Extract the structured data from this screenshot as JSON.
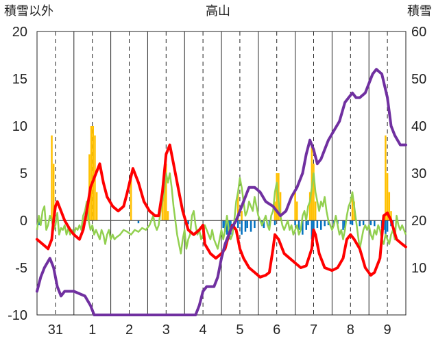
{
  "chart_data": {
    "type": "line",
    "title": "高山",
    "ylabel_left": "積雪以外",
    "ylabel_right": "積雪",
    "y_left": {
      "min": -10,
      "max": 20,
      "ticks": [
        "20",
        "15",
        "10",
        "5",
        "0",
        "-5",
        "-10"
      ]
    },
    "y_right": {
      "min": 0,
      "max": 60,
      "ticks": [
        "60",
        "50",
        "40",
        "30",
        "20",
        "10"
      ]
    },
    "x_range": [
      0,
      10
    ],
    "x_ticks": [
      {
        "label": "31",
        "pos": 0.5
      },
      {
        "label": "1",
        "pos": 1.5
      },
      {
        "label": "2",
        "pos": 2.5
      },
      {
        "label": "3",
        "pos": 3.5
      },
      {
        "label": "4",
        "pos": 4.5
      },
      {
        "label": "5",
        "pos": 5.5
      },
      {
        "label": "6",
        "pos": 6.5
      },
      {
        "label": "7",
        "pos": 7.5
      },
      {
        "label": "8",
        "pos": 8.5
      },
      {
        "label": "9",
        "pos": 9.5
      }
    ],
    "grid": "solid lines at day boundaries, dashed lines at midday",
    "colors": {
      "temperature": "#ff0000",
      "snow_depth": "#7030a0",
      "green_series": "#92d050",
      "precipitation": "#ffc000",
      "negative_bars": "#0070c0",
      "grid": "#222222"
    },
    "precipitation_bars": [
      [
        0.4,
        9.0
      ],
      [
        0.45,
        6.0
      ],
      [
        1.35,
        2.0
      ],
      [
        1.42,
        7.0
      ],
      [
        1.47,
        10.0
      ],
      [
        1.52,
        10.0
      ],
      [
        1.57,
        9.0
      ],
      [
        1.62,
        3.0
      ],
      [
        2.55,
        5.0
      ],
      [
        3.4,
        3.0
      ],
      [
        3.45,
        5.0
      ],
      [
        3.5,
        6.0
      ],
      [
        3.55,
        1.0
      ],
      [
        5.45,
        3.0
      ],
      [
        5.55,
        1.0
      ],
      [
        6.45,
        2.0
      ],
      [
        6.5,
        5.0
      ],
      [
        6.55,
        5.0
      ],
      [
        6.6,
        3.0
      ],
      [
        7.0,
        3.0
      ],
      [
        7.05,
        2.0
      ],
      [
        7.4,
        3.0
      ],
      [
        7.45,
        8.0
      ],
      [
        7.5,
        6.0
      ],
      [
        7.55,
        2.0
      ],
      [
        8.55,
        3.0
      ],
      [
        8.6,
        2.0
      ],
      [
        9.45,
        9.0
      ],
      [
        9.5,
        5.0
      ],
      [
        9.55,
        3.0
      ],
      [
        9.6,
        1.0
      ]
    ],
    "negative_bars": [
      [
        0.05,
        -0.5
      ],
      [
        2.75,
        -0.3
      ],
      [
        4.1,
        -0.4
      ],
      [
        5.05,
        -0.8
      ],
      [
        5.1,
        -1.2
      ],
      [
        5.15,
        -1.5
      ],
      [
        5.2,
        -2.0
      ],
      [
        5.25,
        -1.5
      ],
      [
        5.35,
        -1.0
      ],
      [
        5.45,
        -0.8
      ],
      [
        5.55,
        -1.5
      ],
      [
        5.65,
        -1.2
      ],
      [
        5.7,
        -0.8
      ],
      [
        5.8,
        -1.2
      ],
      [
        5.9,
        -0.8
      ],
      [
        6.1,
        -0.6
      ],
      [
        6.15,
        -0.8
      ],
      [
        6.3,
        -0.6
      ],
      [
        6.45,
        -0.5
      ],
      [
        7.0,
        -0.5
      ],
      [
        7.1,
        -1.0
      ],
      [
        7.2,
        -1.5
      ],
      [
        7.3,
        -1.0
      ],
      [
        7.35,
        -0.5
      ],
      [
        7.45,
        -2.0
      ],
      [
        7.5,
        -1.2
      ],
      [
        7.6,
        -0.8
      ],
      [
        7.7,
        -1.0
      ],
      [
        7.8,
        -0.6
      ],
      [
        7.9,
        -0.5
      ],
      [
        8.05,
        -0.5
      ],
      [
        8.15,
        -0.4
      ],
      [
        8.3,
        -1.0
      ],
      [
        8.35,
        -0.8
      ],
      [
        8.5,
        -0.4
      ],
      [
        8.55,
        -0.5
      ],
      [
        8.75,
        -0.6
      ],
      [
        8.85,
        -0.5
      ],
      [
        9.05,
        -0.5
      ],
      [
        9.15,
        -0.6
      ],
      [
        9.35,
        -0.8
      ],
      [
        9.4,
        -1.0
      ],
      [
        9.45,
        -1.5
      ],
      [
        9.5,
        -1.2
      ],
      [
        9.6,
        -0.6
      ],
      [
        9.65,
        -0.5
      ]
    ],
    "temperature": [
      [
        0,
        -2.0
      ],
      [
        0.15,
        -2.5
      ],
      [
        0.3,
        -3.0
      ],
      [
        0.4,
        -2.0
      ],
      [
        0.45,
        0.0
      ],
      [
        0.5,
        1.5
      ],
      [
        0.55,
        2.0
      ],
      [
        0.65,
        1.0
      ],
      [
        0.75,
        0.0
      ],
      [
        0.9,
        -1.0
      ],
      [
        1.0,
        -1.5
      ],
      [
        1.15,
        -2.0
      ],
      [
        1.25,
        -1.0
      ],
      [
        1.35,
        1.0
      ],
      [
        1.45,
        3.5
      ],
      [
        1.6,
        5.0
      ],
      [
        1.7,
        6.0
      ],
      [
        1.8,
        4.0
      ],
      [
        1.9,
        2.5
      ],
      [
        2.05,
        1.5
      ],
      [
        2.2,
        1.0
      ],
      [
        2.35,
        1.5
      ],
      [
        2.45,
        3.0
      ],
      [
        2.6,
        5.5
      ],
      [
        2.75,
        4.0
      ],
      [
        2.9,
        2.0
      ],
      [
        3.05,
        1.0
      ],
      [
        3.2,
        0.5
      ],
      [
        3.3,
        0.5
      ],
      [
        3.4,
        3.0
      ],
      [
        3.5,
        7.0
      ],
      [
        3.6,
        8.0
      ],
      [
        3.7,
        6.0
      ],
      [
        3.85,
        3.0
      ],
      [
        3.95,
        1.0
      ],
      [
        4.1,
        -1.0
      ],
      [
        4.25,
        -1.5
      ],
      [
        4.4,
        -1.0
      ],
      [
        4.5,
        -0.5
      ],
      [
        4.55,
        -2.5
      ],
      [
        4.7,
        -3.5
      ],
      [
        4.85,
        -4.0
      ],
      [
        5.0,
        -3.5
      ],
      [
        5.1,
        -3.0
      ],
      [
        5.2,
        -1.5
      ],
      [
        5.3,
        -0.5
      ],
      [
        5.4,
        -1.0
      ],
      [
        5.5,
        -3.0
      ],
      [
        5.6,
        -4.0
      ],
      [
        5.75,
        -5.0
      ],
      [
        5.9,
        -5.5
      ],
      [
        6.05,
        -6.0
      ],
      [
        6.2,
        -5.8
      ],
      [
        6.3,
        -5.5
      ],
      [
        6.4,
        -3.0
      ],
      [
        6.45,
        -1.5
      ],
      [
        6.55,
        -2.0
      ],
      [
        6.7,
        -3.5
      ],
      [
        6.85,
        -4.0
      ],
      [
        7.0,
        -4.5
      ],
      [
        7.15,
        -5.0
      ],
      [
        7.3,
        -4.8
      ],
      [
        7.45,
        -3.0
      ],
      [
        7.5,
        -1.0
      ],
      [
        7.55,
        -1.5
      ],
      [
        7.65,
        -3.5
      ],
      [
        7.8,
        -5.0
      ],
      [
        8.0,
        -5.3
      ],
      [
        8.15,
        -5.0
      ],
      [
        8.3,
        -4.0
      ],
      [
        8.4,
        -2.0
      ],
      [
        8.5,
        -1.5
      ],
      [
        8.6,
        -2.0
      ],
      [
        8.75,
        -3.0
      ],
      [
        8.9,
        -5.0
      ],
      [
        9.05,
        -5.8
      ],
      [
        9.15,
        -5.5
      ],
      [
        9.3,
        -4.0
      ],
      [
        9.4,
        0.5
      ],
      [
        9.5,
        0.8
      ],
      [
        9.6,
        0.0
      ],
      [
        9.75,
        -2.0
      ],
      [
        9.9,
        -2.5
      ],
      [
        10.0,
        -2.8
      ]
    ],
    "snow_depth": [
      [
        0,
        5
      ],
      [
        0.1,
        8
      ],
      [
        0.2,
        10
      ],
      [
        0.35,
        12
      ],
      [
        0.45,
        10
      ],
      [
        0.55,
        6
      ],
      [
        0.65,
        4
      ],
      [
        0.75,
        5
      ],
      [
        1.0,
        5
      ],
      [
        1.3,
        4
      ],
      [
        1.45,
        2
      ],
      [
        1.55,
        0
      ],
      [
        2.0,
        0
      ],
      [
        3.0,
        0
      ],
      [
        4.0,
        0
      ],
      [
        4.3,
        0
      ],
      [
        4.4,
        2
      ],
      [
        4.5,
        5
      ],
      [
        4.6,
        6
      ],
      [
        4.7,
        6
      ],
      [
        4.8,
        6
      ],
      [
        4.9,
        8
      ],
      [
        5.0,
        12
      ],
      [
        5.1,
        15
      ],
      [
        5.25,
        18
      ],
      [
        5.4,
        20
      ],
      [
        5.5,
        22
      ],
      [
        5.6,
        24
      ],
      [
        5.75,
        27
      ],
      [
        5.9,
        27
      ],
      [
        6.05,
        26
      ],
      [
        6.2,
        24
      ],
      [
        6.4,
        23
      ],
      [
        6.6,
        21
      ],
      [
        6.75,
        22
      ],
      [
        6.9,
        25
      ],
      [
        7.05,
        27
      ],
      [
        7.2,
        30
      ],
      [
        7.3,
        34
      ],
      [
        7.4,
        37
      ],
      [
        7.5,
        35
      ],
      [
        7.6,
        32
      ],
      [
        7.7,
        33
      ],
      [
        7.8,
        35
      ],
      [
        7.9,
        37
      ],
      [
        8.05,
        39
      ],
      [
        8.2,
        41
      ],
      [
        8.35,
        45
      ],
      [
        8.45,
        46
      ],
      [
        8.55,
        47
      ],
      [
        8.65,
        46
      ],
      [
        8.75,
        46
      ],
      [
        8.9,
        47
      ],
      [
        9.0,
        49
      ],
      [
        9.1,
        51
      ],
      [
        9.2,
        52
      ],
      [
        9.35,
        51
      ],
      [
        9.5,
        46
      ],
      [
        9.6,
        40
      ],
      [
        9.7,
        38
      ],
      [
        9.85,
        36
      ],
      [
        10.0,
        36
      ]
    ],
    "green_series": [
      [
        0,
        -1.0
      ],
      [
        0.05,
        0.5
      ],
      [
        0.1,
        -0.5
      ],
      [
        0.15,
        1.0
      ],
      [
        0.2,
        1.5
      ],
      [
        0.25,
        -1.0
      ],
      [
        0.3,
        -0.5
      ],
      [
        0.35,
        0.5
      ],
      [
        0.4,
        0.0
      ],
      [
        0.45,
        -1.0
      ],
      [
        0.5,
        -0.5
      ],
      [
        0.55,
        0.8
      ],
      [
        0.6,
        -1.5
      ],
      [
        0.65,
        -0.8
      ],
      [
        0.7,
        -1.0
      ],
      [
        0.75,
        -0.5
      ],
      [
        0.8,
        -1.5
      ],
      [
        0.85,
        -0.8
      ],
      [
        0.9,
        -1.5
      ],
      [
        0.95,
        -1.0
      ],
      [
        1.0,
        -1.5
      ],
      [
        1.05,
        -0.8
      ],
      [
        1.1,
        -1.0
      ],
      [
        1.15,
        -0.5
      ],
      [
        1.2,
        -1.0
      ],
      [
        1.25,
        0.5
      ],
      [
        1.3,
        1.0
      ],
      [
        1.35,
        2.0
      ],
      [
        1.4,
        0.0
      ],
      [
        1.45,
        -1.0
      ],
      [
        1.5,
        -0.5
      ],
      [
        1.55,
        -1.5
      ],
      [
        1.6,
        -1.0
      ],
      [
        1.65,
        -1.5
      ],
      [
        1.7,
        -2.0
      ],
      [
        1.75,
        -1.0
      ],
      [
        1.8,
        -1.5
      ],
      [
        1.85,
        -2.5
      ],
      [
        1.9,
        -1.5
      ],
      [
        1.95,
        -1.0
      ],
      [
        2.0,
        -2.0
      ],
      [
        2.05,
        -1.5
      ],
      [
        2.1,
        -2.0
      ],
      [
        2.15,
        -1.8
      ],
      [
        2.25,
        -1.5
      ],
      [
        2.35,
        -1.0
      ],
      [
        2.45,
        -1.2
      ],
      [
        2.55,
        -1.5
      ],
      [
        2.65,
        -1.0
      ],
      [
        2.75,
        -1.2
      ],
      [
        2.85,
        -0.8
      ],
      [
        2.95,
        -1.0
      ],
      [
        3.05,
        -0.5
      ],
      [
        3.15,
        0.5
      ],
      [
        3.2,
        -0.5
      ],
      [
        3.25,
        -1.0
      ],
      [
        3.3,
        -0.5
      ],
      [
        3.35,
        1.0
      ],
      [
        3.4,
        2.0
      ],
      [
        3.45,
        3.0
      ],
      [
        3.5,
        5.0
      ],
      [
        3.55,
        4.0
      ],
      [
        3.6,
        5.0
      ],
      [
        3.65,
        3.5
      ],
      [
        3.7,
        1.5
      ],
      [
        3.75,
        0.0
      ],
      [
        3.8,
        -1.5
      ],
      [
        3.85,
        -2.5
      ],
      [
        3.9,
        -3.5
      ],
      [
        3.95,
        -2.0
      ],
      [
        4.0,
        -1.0
      ],
      [
        4.05,
        -3.0
      ],
      [
        4.1,
        -2.0
      ],
      [
        4.15,
        -1.5
      ],
      [
        4.2,
        0.5
      ],
      [
        4.25,
        1.0
      ],
      [
        4.3,
        -0.5
      ],
      [
        4.35,
        -1.5
      ],
      [
        4.4,
        -1.0
      ],
      [
        4.45,
        -2.0
      ],
      [
        4.5,
        -1.5
      ],
      [
        4.55,
        -0.5
      ],
      [
        4.6,
        -1.0
      ],
      [
        4.65,
        -1.5
      ],
      [
        4.7,
        -2.0
      ],
      [
        4.75,
        -1.0
      ],
      [
        4.8,
        -2.0
      ],
      [
        4.85,
        -2.5
      ],
      [
        4.9,
        -3.0
      ],
      [
        4.95,
        -2.0
      ],
      [
        5.0,
        -1.0
      ],
      [
        5.05,
        -2.0
      ],
      [
        5.1,
        -1.0
      ],
      [
        5.15,
        0.5
      ],
      [
        5.2,
        -1.0
      ],
      [
        5.25,
        -2.0
      ],
      [
        5.3,
        -1.5
      ],
      [
        5.35,
        0.0
      ],
      [
        5.4,
        2.0
      ],
      [
        5.45,
        3.0
      ],
      [
        5.5,
        4.5
      ],
      [
        5.55,
        3.5
      ],
      [
        5.6,
        2.0
      ],
      [
        5.65,
        0.5
      ],
      [
        5.7,
        1.0
      ],
      [
        5.75,
        2.0
      ],
      [
        5.8,
        1.5
      ],
      [
        5.85,
        1.0
      ],
      [
        5.9,
        2.5
      ],
      [
        5.95,
        1.5
      ],
      [
        6.0,
        0.5
      ],
      [
        6.05,
        0.0
      ],
      [
        6.1,
        -0.5
      ],
      [
        6.15,
        0.0
      ],
      [
        6.2,
        0.5
      ],
      [
        6.25,
        -0.5
      ],
      [
        6.3,
        -1.0
      ],
      [
        6.35,
        0.5
      ],
      [
        6.4,
        1.0
      ],
      [
        6.45,
        3.0
      ],
      [
        6.5,
        4.0
      ],
      [
        6.55,
        2.0
      ],
      [
        6.6,
        0.5
      ],
      [
        6.65,
        -0.5
      ],
      [
        6.7,
        -1.0
      ],
      [
        6.75,
        -0.5
      ],
      [
        6.8,
        0.0
      ],
      [
        6.85,
        -1.0
      ],
      [
        6.9,
        -0.5
      ],
      [
        6.95,
        -1.5
      ],
      [
        7.0,
        -1.0
      ],
      [
        7.05,
        -0.5
      ],
      [
        7.1,
        -1.5
      ],
      [
        7.15,
        -1.0
      ],
      [
        7.2,
        0.5
      ],
      [
        7.25,
        1.0
      ],
      [
        7.3,
        0.0
      ],
      [
        7.35,
        1.5
      ],
      [
        7.4,
        2.0
      ],
      [
        7.45,
        3.5
      ],
      [
        7.5,
        5.0
      ],
      [
        7.55,
        3.0
      ],
      [
        7.6,
        2.0
      ],
      [
        7.65,
        1.0
      ],
      [
        7.7,
        2.0
      ],
      [
        7.75,
        1.5
      ],
      [
        7.8,
        2.5
      ],
      [
        7.85,
        1.0
      ],
      [
        7.9,
        0.0
      ],
      [
        7.95,
        -0.5
      ],
      [
        8.0,
        -1.0
      ],
      [
        8.05,
        -0.5
      ],
      [
        8.1,
        0.5
      ],
      [
        8.15,
        -0.5
      ],
      [
        8.2,
        -1.5
      ],
      [
        8.25,
        -1.0
      ],
      [
        8.3,
        -2.0
      ],
      [
        8.35,
        -1.0
      ],
      [
        8.4,
        0.5
      ],
      [
        8.45,
        1.5
      ],
      [
        8.5,
        2.0
      ],
      [
        8.55,
        3.0
      ],
      [
        8.6,
        1.5
      ],
      [
        8.65,
        0.0
      ],
      [
        8.7,
        -1.5
      ],
      [
        8.75,
        -3.0
      ],
      [
        8.8,
        -2.0
      ],
      [
        8.85,
        -1.0
      ],
      [
        8.9,
        -0.5
      ],
      [
        8.95,
        -1.0
      ],
      [
        9.0,
        -0.5
      ],
      [
        9.05,
        -1.5
      ],
      [
        9.1,
        -2.0
      ],
      [
        9.15,
        -1.0
      ],
      [
        9.2,
        -1.5
      ],
      [
        9.25,
        -0.5
      ],
      [
        9.3,
        -1.0
      ],
      [
        9.35,
        -2.0
      ],
      [
        9.4,
        -2.5
      ],
      [
        9.45,
        -1.5
      ],
      [
        9.5,
        -2.0
      ],
      [
        9.55,
        -2.5
      ],
      [
        9.6,
        -1.5
      ],
      [
        9.65,
        -1.0
      ],
      [
        9.7,
        -2.0
      ],
      [
        9.75,
        0.5
      ],
      [
        9.8,
        -0.5
      ],
      [
        9.85,
        -1.0
      ],
      [
        9.9,
        -0.5
      ],
      [
        9.95,
        -1.0
      ],
      [
        10.0,
        -1.5
      ]
    ]
  }
}
